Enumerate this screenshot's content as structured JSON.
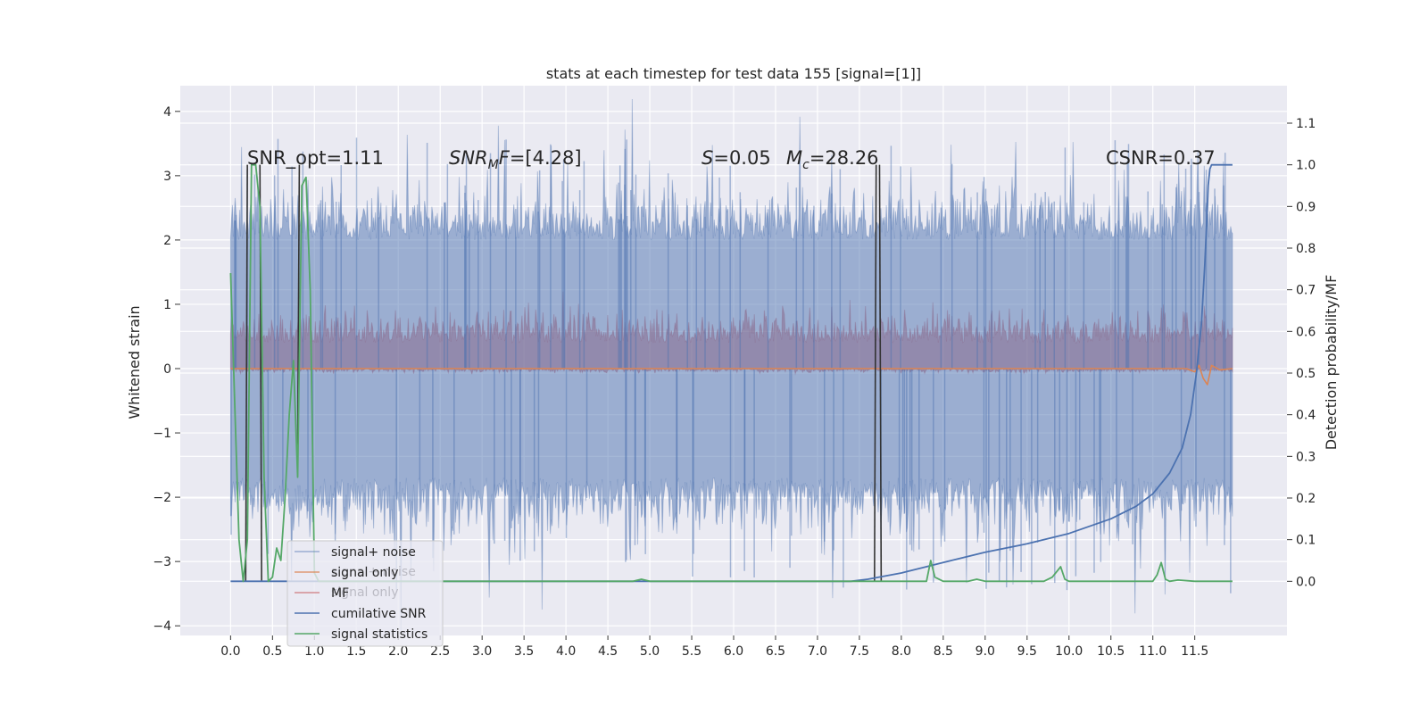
{
  "chart_data": {
    "type": "line",
    "title": "stats at each timestep for test data 155 [signal=[1]]",
    "xlabel": "",
    "ylabel": "Whitened strain",
    "y2label": "Detection probability/MF",
    "xlim": [
      -0.6,
      12.6
    ],
    "ylim": [
      -4.15,
      4.4
    ],
    "y2lim": [
      -0.13,
      1.19
    ],
    "x_ticks": [
      "0.0",
      "0.5",
      "1.0",
      "1.5",
      "2.0",
      "2.5",
      "3.0",
      "3.5",
      "4.0",
      "4.5",
      "5.0",
      "5.5",
      "6.0",
      "6.5",
      "7.0",
      "7.5",
      "8.0",
      "8.5",
      "9.0",
      "9.5",
      "10.0",
      "10.5",
      "11.0",
      "11.5"
    ],
    "y_ticks": [
      "4",
      "3",
      "2",
      "1",
      "0",
      "−1",
      "−2",
      "−3",
      "−4"
    ],
    "y2_ticks": [
      "1.1",
      "1.0",
      "0.9",
      "0.8",
      "0.7",
      "0.6",
      "0.5",
      "0.4",
      "0.3",
      "0.2",
      "0.1",
      "0.0"
    ],
    "grid": true,
    "legend_position": "lower-left",
    "annotations": [
      {
        "label": "SNR_opt=1.11",
        "x": 0.2
      },
      {
        "label": "SNR_M F=[4.28]",
        "x": 2.6
      },
      {
        "label": "S=0.05",
        "x": 5.6
      },
      {
        "label": "M_c=28.26",
        "x": 6.6
      },
      {
        "label": "CSNR=0.37",
        "x": 10.4
      }
    ],
    "legend": [
      "signal+ noise",
      "signal only",
      "MF",
      "cumilative SNR",
      "signal statistics"
    ],
    "legend_ghost": [
      "signal+ noise",
      "signal only"
    ],
    "colors": {
      "signal_noise": "#4c72b0",
      "signal_only": "#dd8452",
      "mf": "#c44e52",
      "cumulative": "#4c72b0",
      "statistics": "#55a868",
      "dark": "#333333",
      "background": "#eaeaf2"
    },
    "series": [
      {
        "name": "cumilative SNR",
        "axis": "right",
        "x": [
          0.0,
          7.4,
          7.6,
          8.0,
          8.5,
          9.0,
          9.5,
          10.0,
          10.5,
          10.8,
          11.0,
          11.2,
          11.35,
          11.45,
          11.52,
          11.58,
          11.62,
          11.64,
          11.65,
          11.66,
          11.68,
          11.7,
          11.72,
          11.75,
          11.8,
          11.95
        ],
        "y": [
          0.0,
          0.0,
          0.005,
          0.02,
          0.045,
          0.07,
          0.09,
          0.115,
          0.15,
          0.18,
          0.21,
          0.26,
          0.32,
          0.4,
          0.5,
          0.62,
          0.76,
          0.85,
          0.9,
          0.95,
          0.99,
          1.0,
          1.0,
          1.0,
          1.0,
          1.0
        ]
      },
      {
        "name": "signal statistics",
        "axis": "right",
        "x": [
          0.0,
          0.1,
          0.15,
          0.2,
          0.25,
          0.3,
          0.35,
          0.4,
          0.45,
          0.5,
          0.55,
          0.6,
          0.65,
          0.7,
          0.75,
          0.8,
          0.85,
          0.9,
          0.95,
          1.0,
          1.05,
          1.2,
          4.8,
          4.9,
          5.0,
          7.8,
          8.0,
          8.3,
          8.35,
          8.4,
          8.5,
          8.8,
          8.9,
          9.0,
          9.7,
          9.8,
          9.9,
          9.95,
          10.0,
          10.1,
          11.0,
          11.05,
          11.1,
          11.15,
          11.2,
          11.3,
          11.5,
          11.95
        ],
        "y": [
          0.74,
          0.1,
          0.0,
          0.1,
          1.0,
          1.0,
          0.9,
          0.25,
          0.0,
          0.01,
          0.08,
          0.05,
          0.2,
          0.4,
          0.53,
          0.25,
          0.95,
          0.97,
          0.7,
          0.02,
          0.0,
          0.0,
          0.0,
          0.005,
          0.0,
          0.0,
          0.0,
          0.0,
          0.05,
          0.01,
          0.0,
          0.0,
          0.005,
          0.0,
          0.0,
          0.01,
          0.035,
          0.005,
          0.0,
          0.0,
          0.0,
          0.015,
          0.045,
          0.005,
          0.0,
          0.003,
          0.0,
          0.0
        ]
      },
      {
        "name": "dark markers",
        "axis": "right",
        "x": [
          0.18,
          0.2,
          0.35,
          0.37,
          0.8,
          0.82,
          7.68,
          7.7,
          7.74,
          7.76
        ],
        "y": [
          0.0,
          1.0,
          1.0,
          0.0,
          0.3,
          1.0,
          0.0,
          1.0,
          1.0,
          0.0
        ]
      },
      {
        "name": "signal only",
        "axis": "left",
        "x": [
          0.0,
          11.4,
          11.5,
          11.55,
          11.6,
          11.65,
          11.7,
          11.8,
          11.95
        ],
        "y": [
          0.0,
          0.0,
          -0.05,
          0.05,
          -0.15,
          -0.25,
          0.05,
          -0.02,
          0.0
        ]
      }
    ]
  }
}
